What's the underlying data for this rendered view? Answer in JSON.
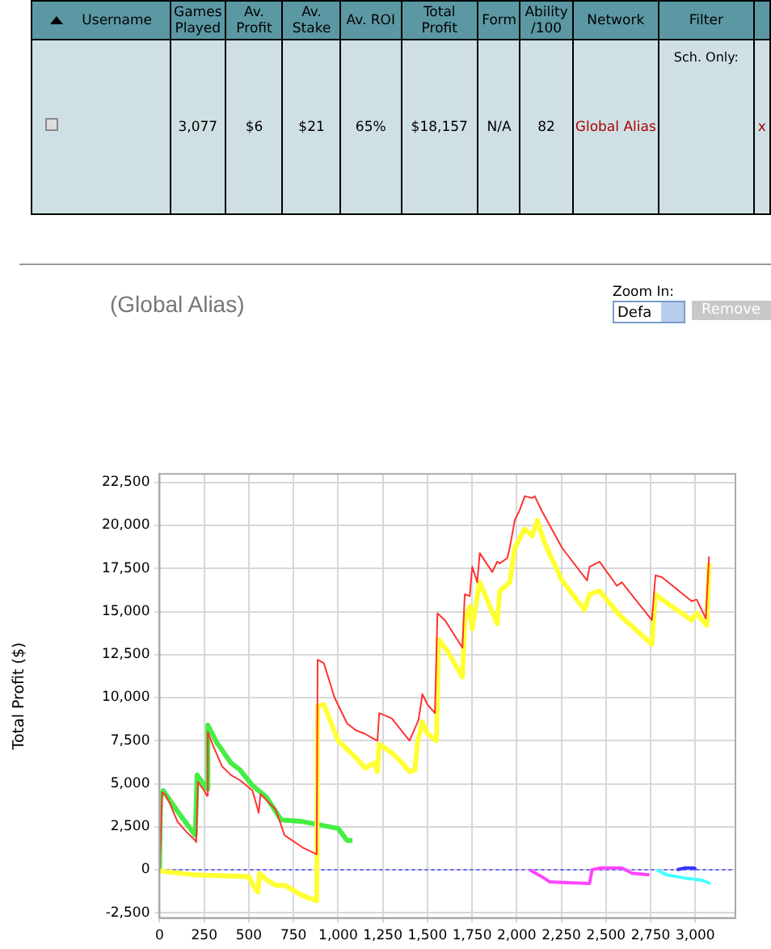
{
  "chart_data": [
    {
      "type": "other",
      "categories": [
        "Username",
        "Games Played",
        "Av. Profit",
        "Av. Stake",
        "Av. ROI",
        "Total Profit",
        "Form",
        "Ability /100",
        "Network",
        "Filter",
        null
      ],
      "cell_labels": [
        [
          null,
          "3,077",
          "$6",
          "$21",
          "65%",
          "$18,157",
          "N/A",
          "82",
          "Global Alias",
          "Sch. Only:",
          "x"
        ]
      ]
    },
    {
      "type": "line",
      "title": "(Global Alias)",
      "ylabel": "Total Profit ($)",
      "annotations": [
        "Zoom In:",
        "Defa",
        "Remove"
      ],
      "series": [
        {
          "color": "#ff3333",
          "x": [
            0,
            15,
            30,
            60,
            100,
            150,
            200,
            205,
            215,
            250,
            265,
            270,
            300,
            350,
            400,
            450,
            520,
            545,
            555,
            565,
            650,
            700,
            800,
            880,
            885,
            920,
            980,
            1050,
            1100,
            1150,
            1200,
            1220,
            1230,
            1300,
            1400,
            1450,
            1472,
            1500,
            1542,
            1556,
            1598,
            1696,
            1709,
            1737,
            1751,
            1779,
            1793,
            1863,
            1891,
            1905,
            1947,
            1961,
            1989,
            2017,
            2045,
            2087,
            2101,
            2143,
            2254,
            2394,
            2408,
            2464,
            2561,
            2589,
            2757,
            2777,
            2813,
            2980,
            3008,
            3059,
            3077
          ],
          "values": [
            0,
            4500,
            4400,
            3800,
            2800,
            2200,
            1700,
            1600,
            5100,
            4600,
            4300,
            8000,
            7200,
            6000,
            5500,
            5200,
            4600,
            3700,
            3300,
            4400,
            3500,
            2000,
            1300,
            900,
            12200,
            12000,
            10000,
            8500,
            8100,
            7900,
            7600,
            7500,
            9100,
            8800,
            7500,
            8700,
            10200,
            9600,
            9100,
            14900,
            14500,
            12900,
            16000,
            15900,
            17600,
            16700,
            18400,
            17300,
            17900,
            17800,
            18100,
            18700,
            20300,
            20900,
            21700,
            21600,
            21700,
            20800,
            18700,
            16800,
            17600,
            17900,
            16500,
            16700,
            14500,
            17100,
            17000,
            15600,
            15700,
            14600,
            18200
          ]
        },
        {
          "color": "#ffff33",
          "x": [
            0,
            20,
            200,
            500,
            530,
            550,
            560,
            600,
            650,
            700,
            800,
            880,
            885,
            920,
            1000,
            1100,
            1150,
            1200,
            1220,
            1230,
            1300,
            1350,
            1400,
            1430,
            1444,
            1472,
            1500,
            1550,
            1561,
            1612,
            1696,
            1709,
            1737,
            1751,
            1779,
            1793,
            1891,
            1905,
            1961,
            1989,
            2045,
            2087,
            2115,
            2156,
            2254,
            2380,
            2408,
            2464,
            2575,
            2757,
            2777,
            2813,
            2980,
            3008,
            3064,
            3077
          ],
          "values": [
            0,
            -100,
            -300,
            -400,
            -1000,
            -1300,
            -200,
            -600,
            -900,
            -900,
            -1500,
            -1800,
            9500,
            9600,
            7500,
            6500,
            5900,
            6200,
            5700,
            7300,
            6800,
            6300,
            5700,
            5800,
            7400,
            8600,
            7900,
            7500,
            13400,
            12700,
            11200,
            14500,
            15300,
            14000,
            15900,
            16700,
            14300,
            16200,
            16700,
            18700,
            19800,
            19400,
            20300,
            19000,
            16800,
            15100,
            16000,
            16200,
            14800,
            13100,
            16000,
            15700,
            14500,
            14900,
            14200,
            17800
          ]
        },
        {
          "color": "#44ee44",
          "x": [
            0,
            5,
            20,
            100,
            150,
            200,
            210,
            265,
            270,
            320,
            400,
            450,
            520,
            600,
            680,
            800,
            900,
            1000,
            1050,
            1080
          ],
          "values": [
            0,
            4200,
            4600,
            3400,
            2700,
            2000,
            5500,
            4700,
            8400,
            7400,
            6200,
            5800,
            4900,
            4200,
            2900,
            2800,
            2600,
            2400,
            1700,
            1700
          ]
        },
        {
          "color": "#ff44ff",
          "x": [
            2073,
            2156,
            2184,
            2408,
            2422,
            2464,
            2589,
            2645,
            2743
          ],
          "values": [
            0,
            -500,
            -700,
            -800,
            0,
            100,
            100,
            -200,
            -300
          ]
        },
        {
          "color": "#44ffff",
          "x": [
            2785,
            2841,
            2953,
            3036,
            3084
          ],
          "values": [
            0,
            -300,
            -500,
            -600,
            -800
          ]
        },
        {
          "color": "#3333ff",
          "x": [
            2897,
            2939,
            2995,
            3003
          ],
          "values": [
            0,
            100,
            100,
            0
          ]
        }
      ],
      "xlim": [
        0,
        3225
      ],
      "ylim": [
        -2800,
        23000
      ],
      "xticks": [
        0,
        250,
        500,
        750,
        {
          "value": 1000,
          "label": "1,000"
        },
        {
          "value": 1250,
          "label": "1,250"
        },
        {
          "value": 1500,
          "label": "1,500"
        },
        {
          "value": 1750,
          "label": "1,750"
        },
        {
          "value": 2000,
          "label": "2,000"
        },
        {
          "value": 2250,
          "label": "2,250"
        },
        {
          "value": 2500,
          "label": "2,500"
        },
        {
          "value": 2750,
          "label": "2,750"
        },
        {
          "value": 3000,
          "label": "3,000"
        }
      ],
      "yticks": [
        {
          "value": -2500,
          "label": "-2,500"
        },
        0,
        {
          "value": 2500,
          "label": "2,500"
        },
        {
          "value": 5000,
          "label": "5,000"
        },
        {
          "value": 7500,
          "label": "7,500"
        },
        {
          "value": 10000,
          "label": "10,000"
        },
        {
          "value": 12500,
          "label": "12,500"
        },
        {
          "value": 15000,
          "label": "15,000"
        },
        {
          "value": 17500,
          "label": "17,500"
        },
        {
          "value": 20000,
          "label": "20,000"
        },
        {
          "value": 22500,
          "label": "22,500"
        }
      ],
      "ref_lines": [
        {
          "axis": "y",
          "value": 0,
          "color": "#6666ff",
          "line_style": "dotted"
        }
      ],
      "grid": true,
      "marker": "none",
      "line_style": "solid"
    }
  ]
}
